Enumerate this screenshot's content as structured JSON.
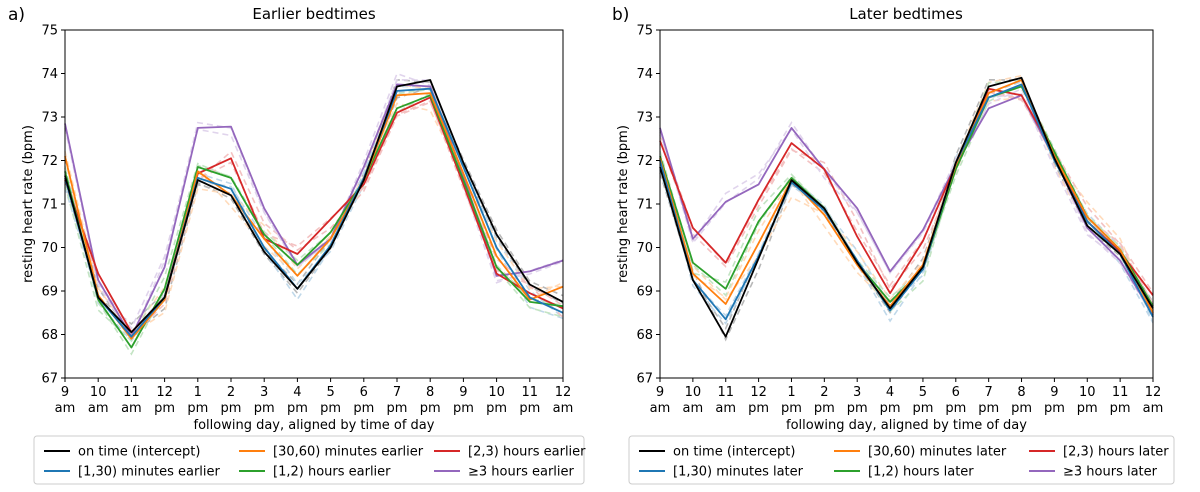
{
  "x_ticks": [
    [
      "9",
      "am"
    ],
    [
      "10",
      "am"
    ],
    [
      "11",
      "am"
    ],
    [
      "12",
      "pm"
    ],
    [
      "1",
      "pm"
    ],
    [
      "2",
      "pm"
    ],
    [
      "3",
      "pm"
    ],
    [
      "4",
      "pm"
    ],
    [
      "5",
      "pm"
    ],
    [
      "6",
      "pm"
    ],
    [
      "7",
      "pm"
    ],
    [
      "8",
      "pm"
    ],
    [
      "9",
      "pm"
    ],
    [
      "10",
      "pm"
    ],
    [
      "11",
      "pm"
    ],
    [
      "12",
      "am"
    ]
  ],
  "y_ticks": [
    "67",
    "68",
    "69",
    "70",
    "71",
    "72",
    "73",
    "74",
    "75"
  ],
  "colors": {
    "on time (intercept)": "#000000",
    "[1,30)": "#1f77b4",
    "[30,60)": "#ff7f0e",
    "[1,2)": "#2ca02c",
    "[2,3)": "#d62728",
    ">=3": "#9467bd"
  },
  "chart_data": [
    {
      "type": "line",
      "panel_label": "a)",
      "title": "Earlier bedtimes",
      "xlabel": "following day, aligned by time of day",
      "ylabel": "resting heart rate (bpm)",
      "ylim": [
        67,
        75
      ],
      "grid": false,
      "legend_position": "below",
      "legend_columns": [
        [
          "on time (intercept)",
          "[1,30) minutes earlier"
        ],
        [
          "[30,60) minutes earlier",
          "[1,2) hours earlier"
        ],
        [
          "[2,3) hours earlier",
          "≥3 hours earlier"
        ]
      ],
      "series": [
        {
          "name": "on time (intercept)",
          "values": [
            71.65,
            68.85,
            68.05,
            68.85,
            71.55,
            71.2,
            69.9,
            69.05,
            70.0,
            71.55,
            73.7,
            73.85,
            71.95,
            70.3,
            69.15,
            68.75
          ]
        },
        {
          "name": "[1,30) minutes earlier",
          "values": [
            71.6,
            68.85,
            67.95,
            68.85,
            71.6,
            71.35,
            70.0,
            69.05,
            70.05,
            71.6,
            73.6,
            73.65,
            71.85,
            70.0,
            68.85,
            68.5
          ]
        },
        {
          "name": "[30,60) minutes earlier",
          "values": [
            72.1,
            68.9,
            67.9,
            68.8,
            71.75,
            71.2,
            70.2,
            69.35,
            70.2,
            71.55,
            73.5,
            73.55,
            71.7,
            69.8,
            68.8,
            69.1
          ]
        },
        {
          "name": "[1,2) hours earlier",
          "values": [
            71.75,
            68.8,
            67.7,
            69.05,
            71.85,
            71.6,
            70.3,
            69.6,
            70.35,
            71.55,
            73.2,
            73.5,
            71.55,
            69.55,
            68.75,
            68.65
          ]
        },
        {
          "name": "[2,3) hours earlier",
          "values": [
            71.55,
            69.4,
            68.05,
            68.85,
            71.7,
            72.05,
            70.2,
            69.85,
            70.65,
            71.45,
            73.1,
            73.45,
            71.45,
            69.4,
            68.95,
            68.6
          ]
        },
        {
          "name": "≥3 hours earlier",
          "values": [
            72.85,
            69.25,
            67.95,
            69.55,
            72.75,
            72.78,
            70.9,
            69.6,
            70.2,
            71.85,
            73.75,
            73.7,
            71.65,
            69.35,
            69.45,
            69.7
          ]
        }
      ]
    },
    {
      "type": "line",
      "panel_label": "b)",
      "title": "Later bedtimes",
      "xlabel": "following day, aligned by time of day",
      "ylabel": "resting heart rate (bpm)",
      "ylim": [
        67,
        75
      ],
      "grid": false,
      "legend_position": "below",
      "legend_columns": [
        [
          "on time (intercept)",
          "[1,30) minutes later"
        ],
        [
          "[30,60) minutes later",
          "[1,2) hours later"
        ],
        [
          "[2,3) hours later",
          "≥3 hours later"
        ]
      ],
      "series": [
        {
          "name": "on time (intercept)",
          "values": [
            71.85,
            69.25,
            67.95,
            69.75,
            71.55,
            70.9,
            69.65,
            68.6,
            69.55,
            71.95,
            73.7,
            73.9,
            72.05,
            70.5,
            69.85,
            68.6
          ]
        },
        {
          "name": "[1,30) minutes later",
          "values": [
            72.0,
            69.25,
            68.35,
            69.8,
            71.5,
            70.85,
            69.7,
            68.55,
            69.5,
            71.95,
            73.45,
            73.75,
            72.0,
            70.6,
            69.85,
            68.4
          ]
        },
        {
          "name": "[30,60) minutes later",
          "values": [
            72.05,
            69.4,
            68.7,
            70.1,
            71.55,
            70.75,
            69.6,
            68.65,
            69.6,
            71.9,
            73.55,
            73.85,
            72.1,
            70.7,
            69.95,
            68.5
          ]
        },
        {
          "name": "[1,2) hours later",
          "values": [
            72.1,
            69.65,
            69.05,
            70.6,
            71.6,
            70.9,
            69.65,
            68.75,
            69.5,
            71.8,
            73.45,
            73.7,
            72.2,
            70.7,
            69.95,
            68.65
          ]
        },
        {
          "name": "[2,3) hours later",
          "values": [
            72.45,
            70.45,
            69.65,
            71.1,
            72.4,
            71.8,
            70.25,
            68.95,
            70.15,
            71.9,
            73.65,
            73.5,
            72.15,
            70.6,
            69.9,
            68.9
          ]
        },
        {
          "name": "≥3 hours later",
          "values": [
            72.75,
            70.2,
            71.05,
            71.45,
            72.75,
            71.8,
            70.9,
            69.45,
            70.4,
            71.9,
            73.2,
            73.5,
            72.05,
            70.45,
            69.7,
            68.45
          ]
        }
      ]
    }
  ]
}
